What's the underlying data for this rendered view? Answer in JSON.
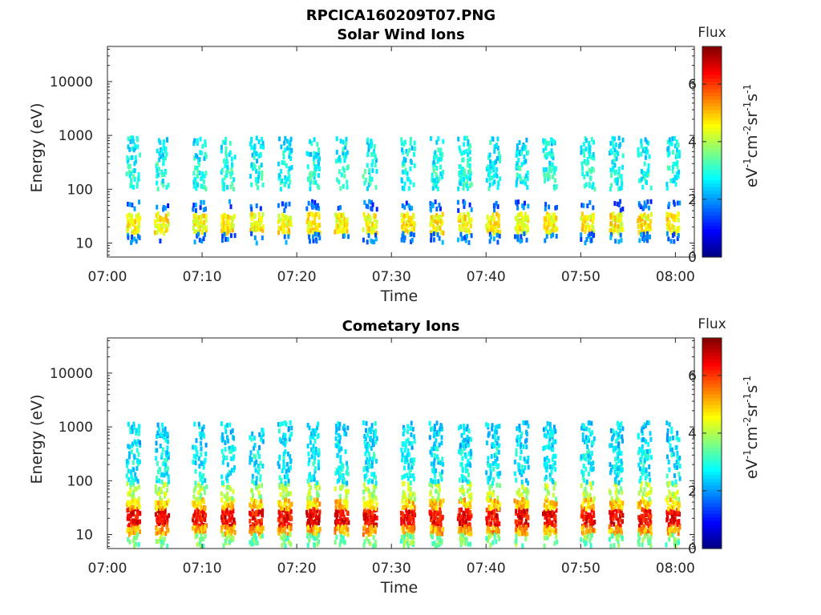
{
  "figure_title": "RPCICA160209T07.PNG",
  "colorbar": {
    "title": "Flux",
    "ticks": [
      0,
      2,
      4,
      6
    ],
    "range": [
      0,
      7.3
    ]
  },
  "chart_data": [
    {
      "type": "heatmap",
      "title": "Solar Wind Ions",
      "xlabel": "Time",
      "ylabel": "Energy (eV)",
      "y_scale": "log",
      "ylim": [
        5.5,
        45000
      ],
      "yticks": [
        10,
        100,
        1000,
        10000
      ],
      "ytick_labels": [
        "10",
        "100",
        "1000",
        "10000"
      ],
      "xlim": [
        "07:00",
        "08:02"
      ],
      "xtick_labels": [
        "07:00",
        "07:10",
        "07:20",
        "07:30",
        "07:40",
        "07:50",
        "08:00"
      ],
      "colorbar_label": "eV-1cm-2sr-1s-1",
      "grid": false,
      "sweep_times": [
        "07:02",
        "07:05",
        "07:09",
        "07:12",
        "07:15",
        "07:18",
        "07:21",
        "07:24",
        "07:27",
        "07:31",
        "07:34",
        "07:37",
        "07:40",
        "07:43",
        "07:46",
        "07:50",
        "07:53",
        "07:56",
        "07:59"
      ],
      "bands": [
        {
          "energy": [
            15,
            35
          ],
          "flux": 4.6
        },
        {
          "energy": [
            10,
            15
          ],
          "flux": 1.8
        },
        {
          "energy": [
            40,
            60
          ],
          "flux": 1.6
        },
        {
          "energy": [
            100,
            300
          ],
          "flux": 2.9
        },
        {
          "energy": [
            300,
            900
          ],
          "flux": 2.7
        }
      ]
    },
    {
      "type": "heatmap",
      "title": "Cometary Ions",
      "xlabel": "Time",
      "ylabel": "Energy (eV)",
      "y_scale": "log",
      "ylim": [
        5.5,
        45000
      ],
      "yticks": [
        10,
        100,
        1000,
        10000
      ],
      "ytick_labels": [
        "10",
        "100",
        "1000",
        "10000"
      ],
      "xlim": [
        "07:00",
        "08:02"
      ],
      "xtick_labels": [
        "07:00",
        "07:10",
        "07:20",
        "07:30",
        "07:40",
        "07:50",
        "08:00"
      ],
      "colorbar_label": "eV-1cm-2sr-1s-1",
      "grid": false,
      "sweep_times": [
        "07:02",
        "07:05",
        "07:09",
        "07:12",
        "07:15",
        "07:18",
        "07:21",
        "07:24",
        "07:27",
        "07:31",
        "07:34",
        "07:37",
        "07:40",
        "07:43",
        "07:46",
        "07:50",
        "07:53",
        "07:56",
        "07:59"
      ],
      "bands": [
        {
          "energy": [
            14,
            30
          ],
          "flux": 6.4
        },
        {
          "energy": [
            10,
            14
          ],
          "flux": 5.2
        },
        {
          "energy": [
            30,
            45
          ],
          "flux": 4.9
        },
        {
          "energy": [
            6,
            10
          ],
          "flux": 3.6
        },
        {
          "energy": [
            45,
            90
          ],
          "flux": 4.0
        },
        {
          "energy": [
            90,
            400
          ],
          "flux": 2.7
        },
        {
          "energy": [
            400,
            1200
          ],
          "flux": 2.5
        }
      ]
    }
  ]
}
